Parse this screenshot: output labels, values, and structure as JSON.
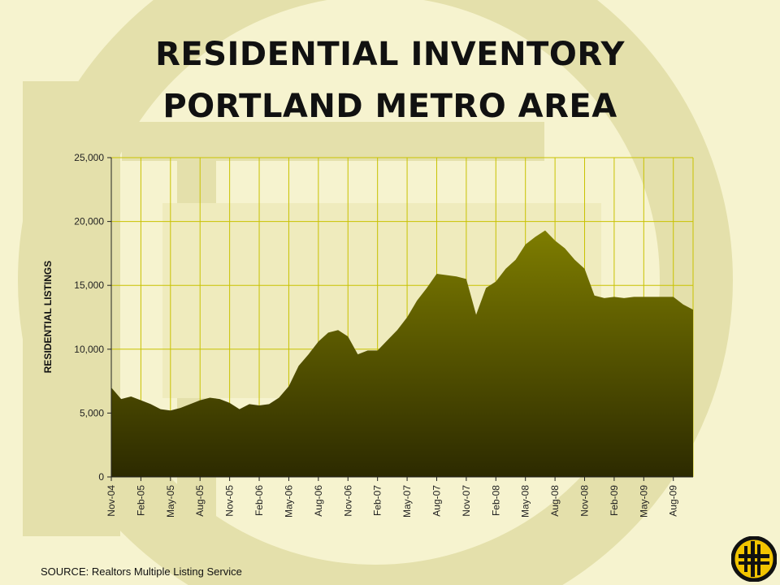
{
  "slide": {
    "title_line1": "RESIDENTIAL INVENTORY",
    "title_line2": "PORTLAND METRO AREA",
    "source": "SOURCE: Realtors Multiple Listing Service"
  },
  "colors": {
    "background": "#f6f3cf",
    "area_top": "#7e7d00",
    "area_bottom": "#2c2a00",
    "grid": "#c8c200",
    "watermark": "#e4e0ab"
  },
  "chart_data": {
    "type": "area",
    "title": "",
    "xlabel": "",
    "ylabel": "RESIDENTIAL LISTINGS",
    "ylim": [
      0,
      25000
    ],
    "yticks": [
      "0",
      "5,000",
      "10,000",
      "15,000",
      "20,000",
      "25,000"
    ],
    "ytick_values": [
      0,
      5000,
      10000,
      15000,
      20000,
      25000
    ],
    "xtick_labels": [
      "Nov-04",
      "Feb-05",
      "May-05",
      "Aug-05",
      "Nov-05",
      "Feb-06",
      "May-06",
      "Aug-06",
      "Nov-06",
      "Feb-07",
      "May-07",
      "Aug-07",
      "Nov-07",
      "Feb-08",
      "May-08",
      "Aug-08",
      "Nov-08",
      "Feb-09",
      "May-09",
      "Aug-09"
    ],
    "grid": true,
    "x": [
      "Nov-04",
      "Dec-04",
      "Jan-05",
      "Feb-05",
      "Mar-05",
      "Apr-05",
      "May-05",
      "Jun-05",
      "Jul-05",
      "Aug-05",
      "Sep-05",
      "Oct-05",
      "Nov-05",
      "Dec-05",
      "Jan-06",
      "Feb-06",
      "Mar-06",
      "Apr-06",
      "May-06",
      "Jun-06",
      "Jul-06",
      "Aug-06",
      "Sep-06",
      "Oct-06",
      "Nov-06",
      "Dec-06",
      "Jan-07",
      "Feb-07",
      "Mar-07",
      "Apr-07",
      "May-07",
      "Jun-07",
      "Jul-07",
      "Aug-07",
      "Sep-07",
      "Oct-07",
      "Nov-07",
      "Dec-07",
      "Jan-08",
      "Feb-08",
      "Mar-08",
      "Apr-08",
      "May-08",
      "Jun-08",
      "Jul-08",
      "Aug-08",
      "Sep-08",
      "Oct-08",
      "Nov-08",
      "Dec-08",
      "Jan-09",
      "Feb-09",
      "Mar-09",
      "Apr-09",
      "May-09",
      "Jun-09",
      "Jul-09",
      "Aug-09",
      "Sep-09",
      "Oct-09"
    ],
    "series": [
      {
        "values": [
          7000,
          6100,
          6300,
          6000,
          5700,
          5300,
          5200,
          5400,
          5700,
          6000,
          6200,
          6100,
          5800,
          5300,
          5700,
          5600,
          5700,
          6200,
          7100,
          8700,
          9600,
          10600,
          11300,
          11500,
          11000,
          9600,
          9900,
          9900,
          10700,
          11500,
          12500,
          13800,
          14800,
          15900,
          15800,
          15700,
          15500,
          12700,
          14800,
          15300,
          16300,
          17000,
          18200,
          18800,
          19300,
          18500,
          17900,
          17000,
          16300,
          14200,
          14000,
          14100,
          14000,
          14100,
          14100,
          14100,
          14100,
          14100,
          13500,
          13100
        ]
      }
    ]
  }
}
